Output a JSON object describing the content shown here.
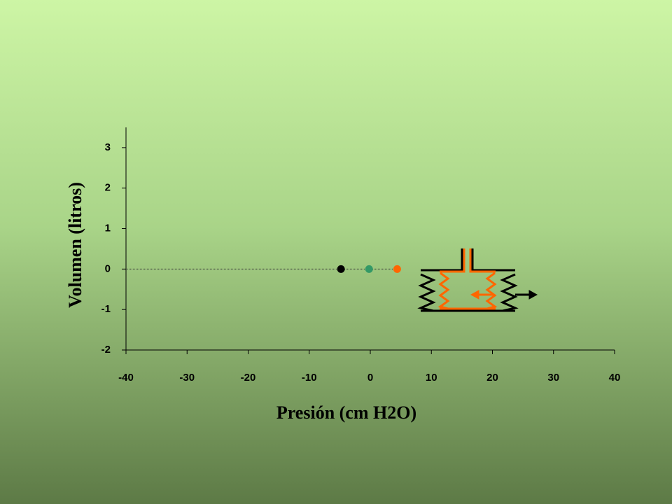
{
  "chart_data": {
    "type": "scatter",
    "x_label": "Presión  (cm H2O)",
    "y_label": "Volumen  (litros)",
    "x": [
      -4.8,
      -0.2,
      4.4
    ],
    "y": [
      0,
      0,
      0
    ],
    "colors": [
      "#000000",
      "#339966",
      "#ff6600"
    ],
    "xlim": [
      -40,
      40
    ],
    "xticks": [
      -40,
      -30,
      -20,
      -10,
      0,
      10,
      20,
      30,
      40
    ],
    "ylim": [
      -2,
      3.5
    ],
    "yticks": [
      -2,
      -1,
      0,
      1,
      2,
      3
    ]
  }
}
